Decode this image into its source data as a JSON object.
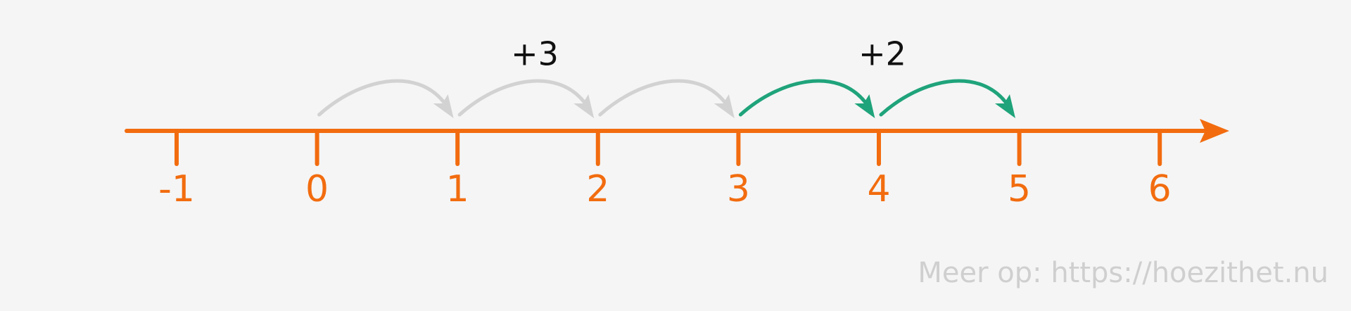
{
  "number_line": {
    "ticks": [
      -1,
      0,
      1,
      2,
      3,
      4,
      5,
      6
    ],
    "jumps": [
      {
        "label": "+3"
      },
      {
        "label": "+2"
      }
    ]
  },
  "footer": {
    "watermark": "Meer op: https://hoezithet.nu"
  }
}
